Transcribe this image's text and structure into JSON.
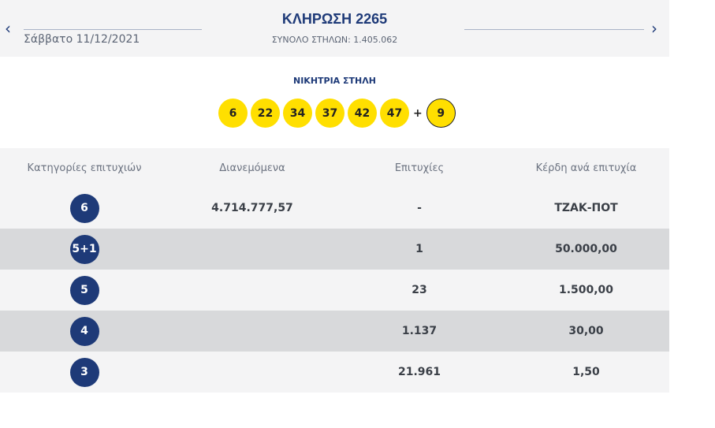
{
  "header": {
    "title": "ΚΛΗΡΩΣΗ 2265",
    "date": "Σάββατο 11/12/2021",
    "total_columns": "ΣΥΝΟΛΟ ΣΤΗΛΩΝ: 1.405.062",
    "prev_icon": "‹",
    "next_icon": "›"
  },
  "winning": {
    "label": "ΝΙΚΗΤΡΙΑ ΣΤΗΛΗ",
    "numbers": [
      "6",
      "22",
      "34",
      "37",
      "42",
      "47"
    ],
    "plus": "+",
    "bonus": "9"
  },
  "table": {
    "headers": [
      "Κατηγορίες επιτυχιών",
      "Διανεμόμενα",
      "Επιτυχίες",
      "Κέρδη ανά επιτυχία"
    ],
    "rows": [
      {
        "category": "6",
        "distributed": "4.714.777,57",
        "winners": "-",
        "prize": "ΤΖΑΚ-ΠΟΤ"
      },
      {
        "category": "5+1",
        "distributed": "",
        "winners": "1",
        "prize": "50.000,00"
      },
      {
        "category": "5",
        "distributed": "",
        "winners": "23",
        "prize": "1.500,00"
      },
      {
        "category": "4",
        "distributed": "",
        "winners": "1.137",
        "prize": "30,00"
      },
      {
        "category": "3",
        "distributed": "",
        "winners": "21.961",
        "prize": "1,50"
      }
    ]
  },
  "colors": {
    "brand_blue": "#1e3a78",
    "ball_yellow": "#ffdf00",
    "row_light": "#f4f4f5",
    "row_dark": "#d8d9db"
  }
}
